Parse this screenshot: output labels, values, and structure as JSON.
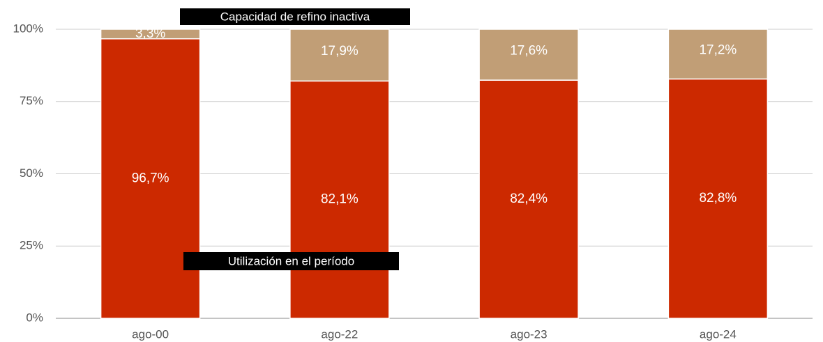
{
  "chart_data": {
    "type": "stacked-bar",
    "categories": [
      "ago-00",
      "ago-22",
      "ago-23",
      "ago-24"
    ],
    "series": [
      {
        "name": "Utilización en el período",
        "color": "#cc2900",
        "values": [
          96.7,
          82.1,
          82.4,
          82.8
        ],
        "value_labels": [
          "96,7%",
          "82,1%",
          "82,4%",
          "82,8%"
        ]
      },
      {
        "name": "Capacidad de refino inactiva",
        "color": "#c19e76",
        "values": [
          3.3,
          17.9,
          17.6,
          17.2
        ],
        "value_labels": [
          "3,3%",
          "17,9%",
          "17,6%",
          "17,2%"
        ]
      }
    ],
    "ylim": [
      0,
      100
    ],
    "yticks": [
      {
        "value": 0,
        "label": "0%"
      },
      {
        "value": 25,
        "label": "25%"
      },
      {
        "value": 50,
        "label": "50%"
      },
      {
        "value": 75,
        "label": "75%"
      },
      {
        "value": 100,
        "label": "100%"
      }
    ],
    "grid": true
  }
}
